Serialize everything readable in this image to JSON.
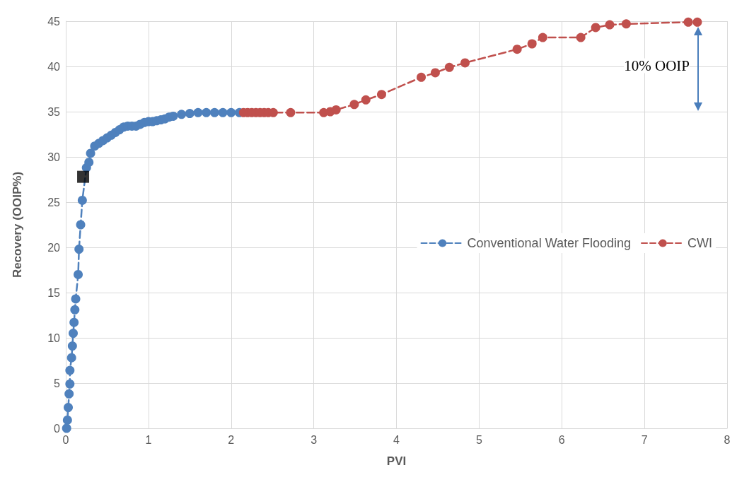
{
  "chart_data": {
    "type": "line",
    "xlabel": "PVI",
    "ylabel": "Recovery (OOIP%)",
    "xlim": [
      0,
      8
    ],
    "xticks": [
      0,
      1,
      2,
      3,
      4,
      5,
      6,
      7,
      8
    ],
    "ylim": [
      0,
      45
    ],
    "yticks": [
      0,
      5,
      10,
      15,
      20,
      25,
      30,
      35,
      40,
      45
    ],
    "grid": true,
    "legend": "right",
    "marker": "circle",
    "line_style": "dashed",
    "annotations": [
      "10% OOIP"
    ],
    "series": [
      {
        "name": "Conventional Water Flooding",
        "color": "#4f81bd",
        "x": [
          0.01,
          0.02,
          0.03,
          0.04,
          0.05,
          0.05,
          0.07,
          0.08,
          0.09,
          0.1,
          0.11,
          0.12,
          0.15,
          0.16,
          0.18,
          0.2,
          0.25,
          0.28,
          0.3,
          0.35,
          0.4,
          0.45,
          0.5,
          0.55,
          0.6,
          0.65,
          0.7,
          0.75,
          0.8,
          0.85,
          0.9,
          0.95,
          1.0,
          1.05,
          1.1,
          1.15,
          1.2,
          1.25,
          1.3,
          1.4,
          1.5,
          1.6,
          1.7,
          1.8,
          1.9,
          2.0,
          2.1
        ],
        "values": [
          0,
          0.9,
          2.3,
          3.8,
          4.9,
          6.4,
          7.8,
          9.1,
          10.5,
          11.7,
          13.1,
          14.3,
          17.0,
          19.8,
          22.5,
          25.2,
          28.8,
          29.4,
          30.4,
          31.2,
          31.5,
          31.8,
          32.1,
          32.4,
          32.7,
          33.0,
          33.3,
          33.4,
          33.4,
          33.4,
          33.6,
          33.8,
          33.9,
          33.9,
          34.0,
          34.1,
          34.2,
          34.4,
          34.5,
          34.7,
          34.8,
          34.9,
          34.9,
          34.9,
          34.9,
          34.9,
          34.9
        ]
      },
      {
        "name": "CWI",
        "color": "#c0504d",
        "x": [
          2.15,
          2.2,
          2.25,
          2.3,
          2.35,
          2.4,
          2.45,
          2.51,
          2.72,
          3.12,
          3.2,
          3.27,
          3.49,
          3.63,
          3.82,
          4.3,
          4.47,
          4.64,
          4.83,
          5.46,
          5.64,
          5.77,
          6.23,
          6.41,
          6.58,
          6.78,
          7.53,
          7.64
        ],
        "values": [
          34.9,
          34.9,
          34.9,
          34.9,
          34.9,
          34.9,
          34.9,
          34.9,
          34.9,
          34.9,
          35.0,
          35.2,
          35.8,
          36.3,
          36.9,
          38.8,
          39.3,
          39.9,
          40.4,
          41.9,
          42.5,
          43.2,
          43.2,
          44.3,
          44.6,
          44.7,
          44.9,
          44.9
        ]
      },
      {
        "type": "scatter",
        "color": "#000000",
        "marker": "square",
        "x": [
          0.21
        ],
        "values": [
          27.8
        ]
      }
    ]
  }
}
